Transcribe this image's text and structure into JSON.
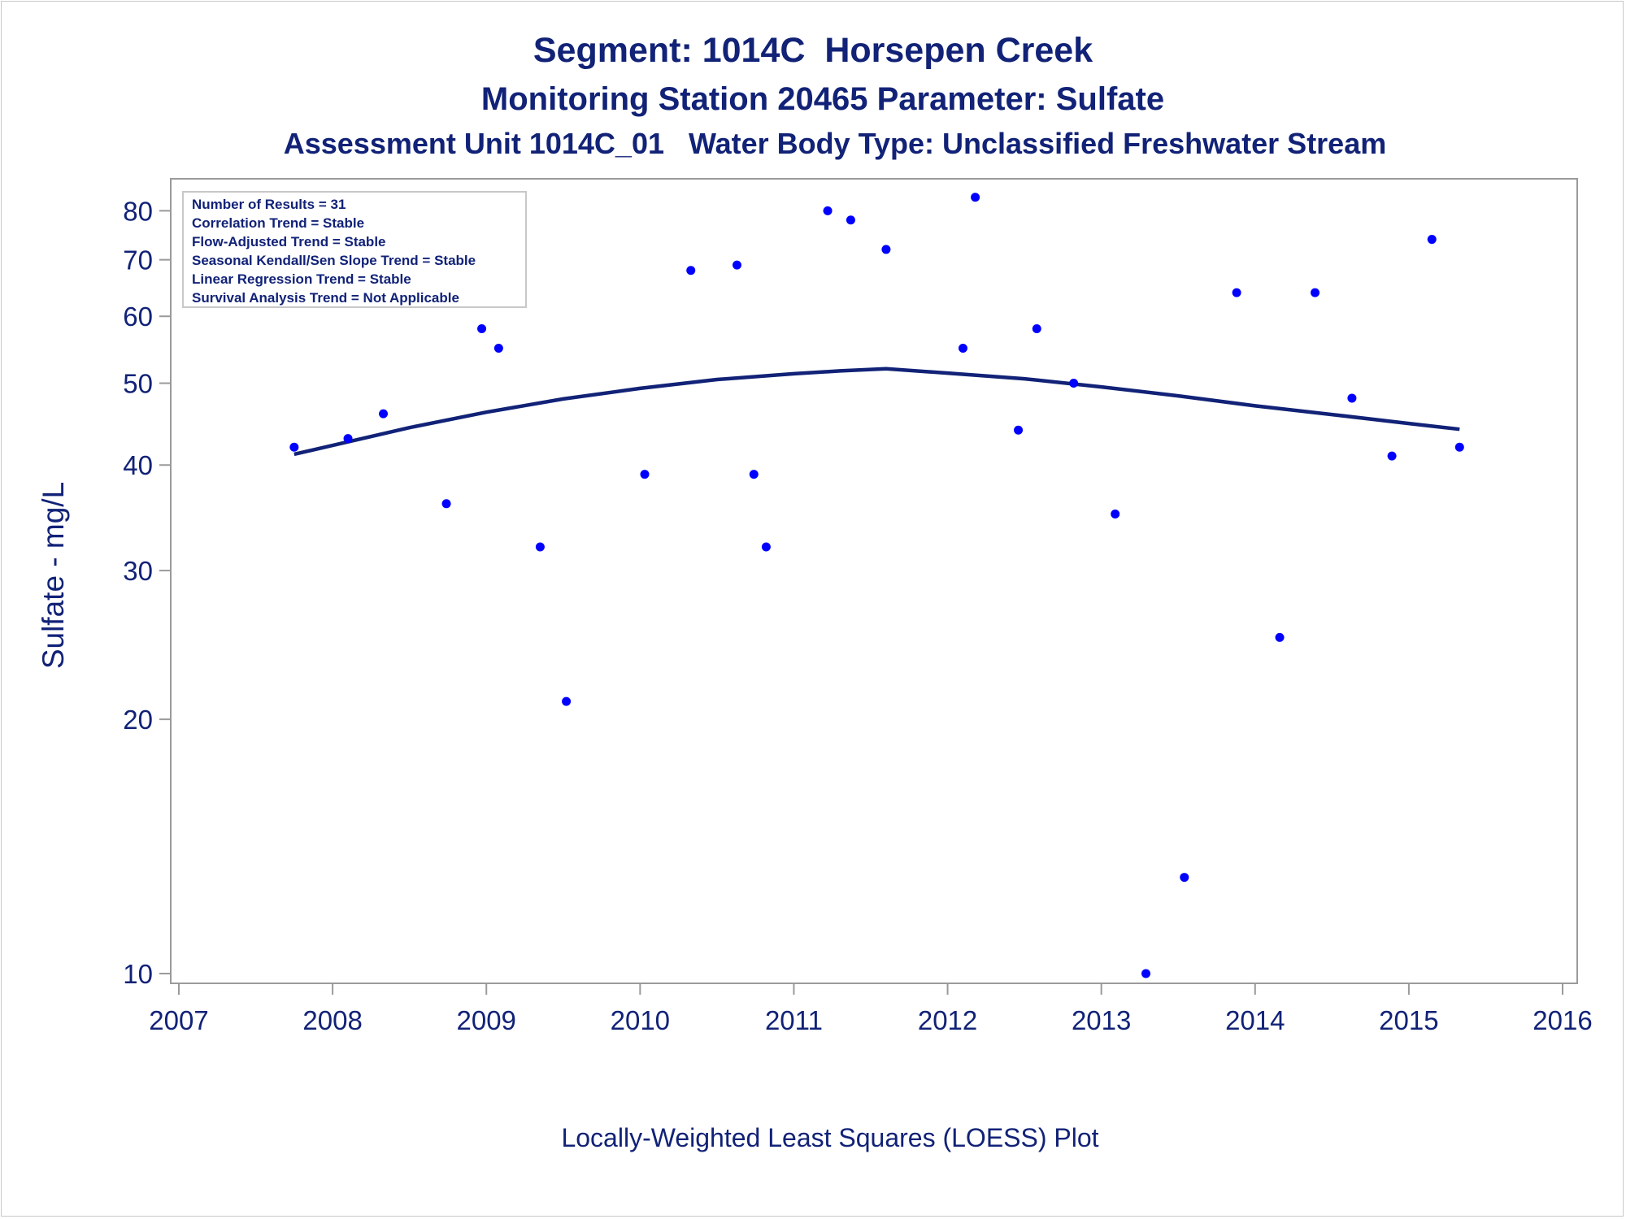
{
  "chart_data": {
    "type": "scatter",
    "title": "Segment: 1014C  Horsepen Creek",
    "subtitle": "Monitoring Station 20465 Parameter: Sulfate",
    "subtitle2": "Assessment Unit 1014C_01   Water Body Type: Unclassified Freshwater Stream",
    "xlabel": "Locally-Weighted Least Squares (LOESS) Plot",
    "ylabel": "Sulfate - mg/L",
    "y_scale": "log",
    "xlim": [
      2007,
      2016
    ],
    "ylim": [
      10,
      85
    ],
    "x_ticks": [
      2007,
      2008,
      2009,
      2010,
      2011,
      2012,
      2013,
      2014,
      2015,
      2016
    ],
    "y_ticks": [
      10,
      20,
      30,
      40,
      50,
      60,
      70,
      80
    ],
    "grid": false,
    "legend_lines": [
      "Number of Results = 31",
      "Correlation Trend = Stable",
      "Flow-Adjusted Trend = Stable",
      "Seasonal Kendall/Sen Slope Trend = Stable",
      "Linear Regression Trend = Stable",
      "Survival Analysis Trend = Not Applicable"
    ],
    "legend_position": "top-left",
    "point_color": "#0000ff",
    "line_color": "#112277",
    "series": [
      {
        "type": "scatter",
        "x": [
          2007.75,
          2008.1,
          2008.33,
          2008.74,
          2008.97,
          2009.08,
          2009.35,
          2009.52,
          2010.03,
          2010.33,
          2010.63,
          2010.74,
          2010.82,
          2011.22,
          2011.37,
          2011.6,
          2012.1,
          2012.18,
          2012.46,
          2012.58,
          2012.82,
          2013.09,
          2013.29,
          2013.54,
          2013.88,
          2014.16,
          2014.39,
          2014.63,
          2014.89,
          2015.15,
          2015.33
        ],
        "y": [
          42,
          43,
          46,
          36,
          58,
          55,
          32,
          21,
          39,
          68,
          69,
          39,
          32,
          80,
          78,
          72,
          55,
          83,
          44,
          58,
          50,
          35,
          10,
          13,
          64,
          25,
          64,
          48,
          41,
          74,
          42
        ]
      },
      {
        "type": "line",
        "x": [
          2007.75,
          2008.0,
          2008.5,
          2009.0,
          2009.5,
          2010.0,
          2010.5,
          2011.0,
          2011.3,
          2011.6,
          2012.0,
          2012.5,
          2013.0,
          2013.5,
          2014.0,
          2014.5,
          2015.0,
          2015.33
        ],
        "y": [
          41.2,
          42.2,
          44.3,
          46.2,
          47.9,
          49.3,
          50.5,
          51.3,
          51.7,
          52.0,
          51.4,
          50.6,
          49.5,
          48.3,
          47.0,
          45.9,
          44.8,
          44.1
        ]
      }
    ]
  }
}
